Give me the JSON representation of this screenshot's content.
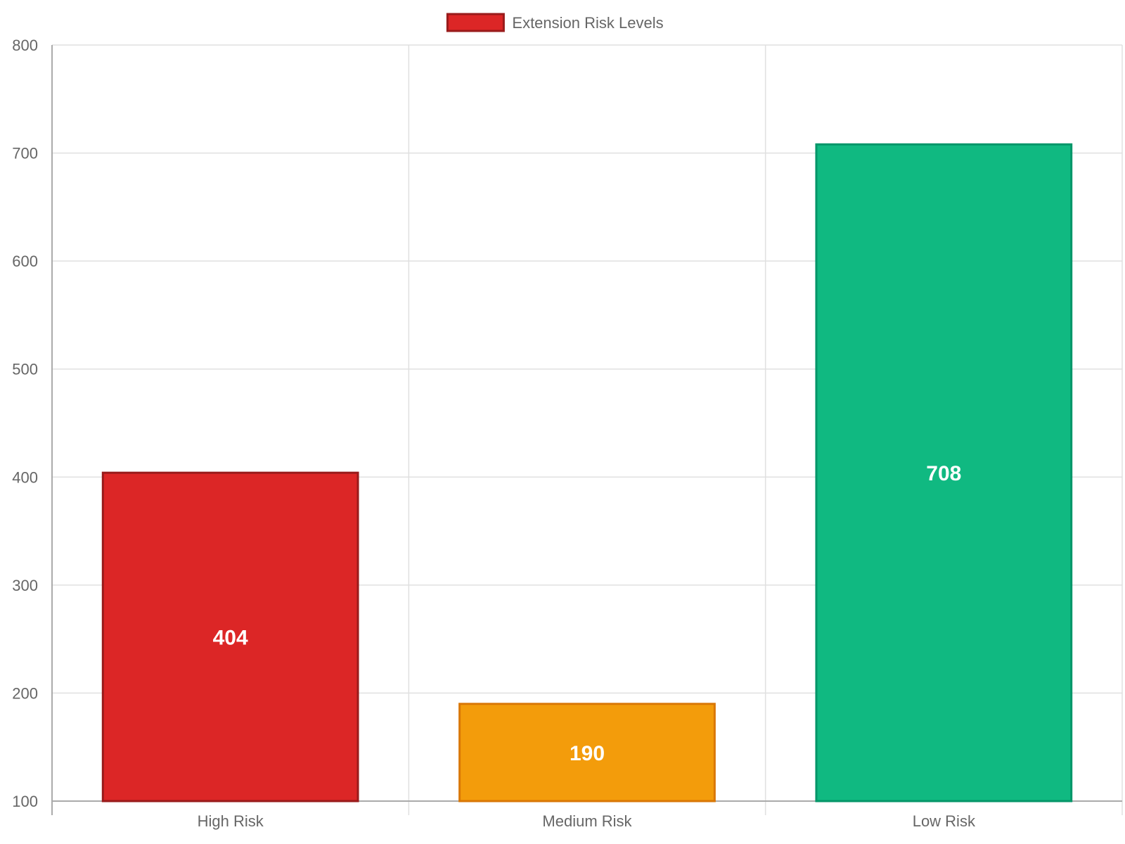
{
  "chart_data": {
    "type": "bar",
    "categories": [
      "High Risk",
      "Medium Risk",
      "Low Risk"
    ],
    "series": [
      {
        "name": "Extension Risk Levels",
        "values": [
          404,
          190,
          708
        ]
      }
    ],
    "data_labels": [
      "404",
      "190",
      "708"
    ],
    "ylim": [
      100,
      800
    ],
    "yticks": [
      100,
      200,
      300,
      400,
      500,
      600,
      700,
      800
    ],
    "grid": true,
    "legend_position": "top-center",
    "colors": {
      "fills": [
        "#dc2626",
        "#f39c0b",
        "#10b981"
      ],
      "borders": [
        "#991b1b",
        "#d97706",
        "#059669"
      ],
      "legend_fill": "#dc2626",
      "legend_border": "#991b1b",
      "grid": "#e0e0e0",
      "axis": "#aaaaaa",
      "text": "#666666",
      "label_text": "#ffffff"
    }
  }
}
